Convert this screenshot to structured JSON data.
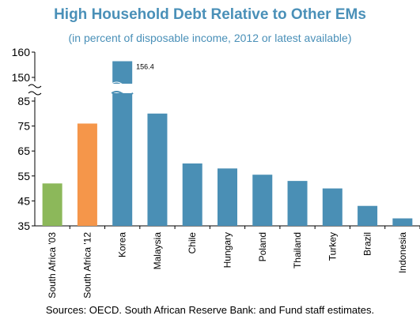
{
  "chart_data": {
    "type": "bar",
    "title": "High Household Debt Relative to Other EMs",
    "subtitle": "(in percent of disposable income, 2012 or latest available)",
    "source": "Sources: OECD. South African Reserve Bank: and Fund staff estimates.",
    "categories": [
      "South Africa '03",
      "South Africa '12",
      "Korea",
      "Malaysia",
      "Chile",
      "Hungary",
      "Poland",
      "Thailand",
      "Turkey",
      "Brazil",
      "Indonesia"
    ],
    "values": [
      52,
      76,
      156.4,
      80,
      60,
      58,
      55.5,
      53,
      50,
      43,
      38
    ],
    "bar_colors": [
      "#8cb85a",
      "#f5964a",
      "#4a8fb5",
      "#4a8fb5",
      "#4a8fb5",
      "#4a8fb5",
      "#4a8fb5",
      "#4a8fb5",
      "#4a8fb5",
      "#4a8fb5",
      "#4a8fb5"
    ],
    "data_labels": [
      {
        "index": 2,
        "text": "156.4"
      }
    ],
    "y_ticks": [
      35,
      45,
      55,
      65,
      75,
      85,
      150,
      160
    ],
    "y_axis_break": {
      "from": 85,
      "to": 150
    },
    "ylim": [
      35,
      160
    ],
    "xlabel": "",
    "ylabel": "",
    "grid": false
  }
}
